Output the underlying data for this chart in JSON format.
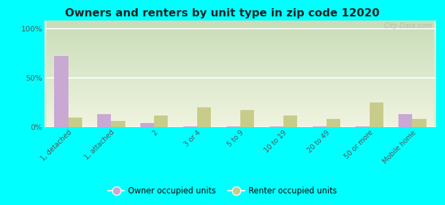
{
  "title": "Owners and renters by unit type in zip code 12020",
  "categories": [
    "1, detached",
    "1, attached",
    "2",
    "3 or 4",
    "5 to 9",
    "10 to 19",
    "20 to 49",
    "50 or more",
    "Mobile home"
  ],
  "owner_values": [
    72,
    13,
    4,
    1,
    1,
    1,
    1,
    1,
    13
  ],
  "renter_values": [
    10,
    6,
    12,
    20,
    17,
    12,
    8,
    25,
    8
  ],
  "owner_color": "#c9a8d4",
  "renter_color": "#c8cc8a",
  "outer_bg": "#00ffff",
  "plot_bg": "#e8f0d8",
  "yticks": [
    0,
    50,
    100
  ],
  "ylim": [
    0,
    108
  ],
  "bar_width": 0.32,
  "watermark": "  City-Data.com"
}
